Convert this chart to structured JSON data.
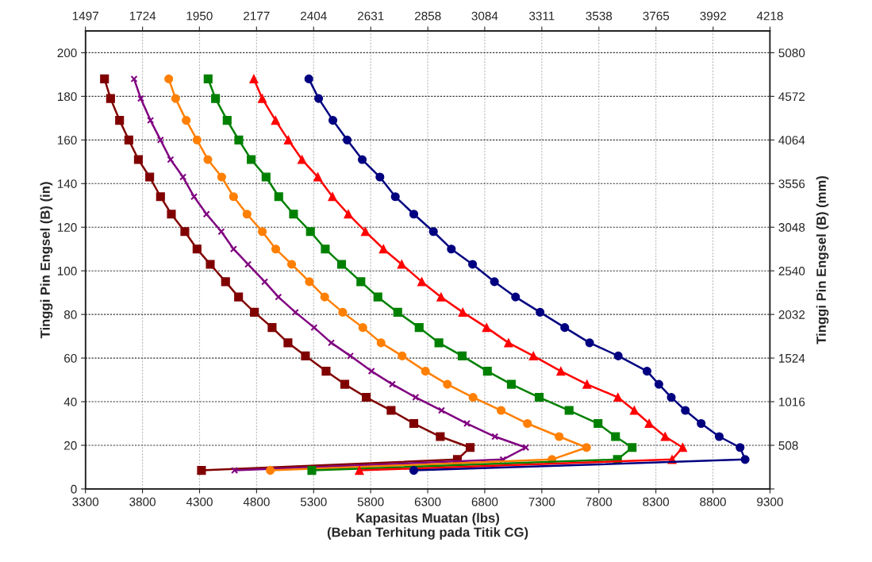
{
  "chart_data": {
    "type": "line",
    "xlabel": "Kapasitas Muatan (lbs)\n(Beban Terhitung pada Titik CG)",
    "ylabel": "Tinggi Pin Engsel (B) (in)",
    "y2label": "Tinggi Pin Engsel (B) (mm)",
    "xlim": [
      3300,
      9300
    ],
    "xticks": [
      3300,
      3800,
      4300,
      4800,
      5300,
      5800,
      6300,
      6800,
      7300,
      7800,
      8300,
      8800,
      9300
    ],
    "x2lim": [
      1497,
      4218
    ],
    "x2ticks": [
      1497,
      1724,
      1950,
      2177,
      2404,
      2631,
      2858,
      3084,
      3311,
      3538,
      3765,
      3992,
      4218
    ],
    "ylim": [
      0,
      210
    ],
    "yticks": [
      0,
      20,
      40,
      60,
      80,
      100,
      120,
      140,
      160,
      180,
      200
    ],
    "y2lim": [
      0,
      5334
    ],
    "y2ticks": [
      {
        "value": 0,
        "label": null
      },
      508,
      1016,
      1524,
      2032,
      2540,
      3048,
      3556,
      4064,
      4572,
      5080
    ],
    "grid": true,
    "line_style": "solid",
    "series": [
      {
        "color": "#800000",
        "marker": "square",
        "x": [
          3467,
          3520,
          3599,
          3680,
          3764,
          3863,
          3958,
          4053,
          4171,
          4278,
          4394,
          4528,
          4642,
          4781,
          4936,
          5075,
          5228,
          5409,
          5573,
          5761,
          5979,
          6178,
          6410,
          6672,
          6560,
          4317
        ],
        "values": [
          188,
          179,
          169,
          160,
          151,
          143,
          134,
          126,
          118,
          110,
          103,
          95,
          88,
          81,
          74,
          67,
          61,
          54,
          48,
          42,
          36,
          30,
          24,
          19,
          13.5,
          8.5
        ]
      },
      {
        "color": "#800080",
        "marker": "cross",
        "x": [
          3726,
          3785,
          3870,
          3958,
          4046,
          4155,
          4252,
          4361,
          4491,
          4598,
          4725,
          4871,
          4991,
          5140,
          5304,
          5455,
          5622,
          5807,
          5990,
          6194,
          6421,
          6644,
          6889,
          7160,
          6960,
          4607
        ],
        "values": [
          188,
          179,
          169,
          160,
          151,
          143,
          134,
          126,
          118,
          110,
          103,
          95,
          88,
          81,
          74,
          67,
          61,
          54,
          48,
          42,
          36,
          30,
          24,
          19,
          13.5,
          8.5
        ]
      },
      {
        "color": "#ff7f00",
        "marker": "circle",
        "x": [
          4030,
          4090,
          4183,
          4278,
          4373,
          4494,
          4598,
          4716,
          4850,
          4968,
          5107,
          5263,
          5397,
          5555,
          5731,
          5891,
          6076,
          6280,
          6472,
          6697,
          6943,
          7174,
          7452,
          7692,
          7389,
          4920
        ],
        "values": [
          188,
          179,
          169,
          160,
          151,
          143,
          134,
          126,
          118,
          110,
          103,
          95,
          88,
          81,
          74,
          67,
          61,
          54,
          48,
          42,
          36,
          30,
          24,
          19,
          13.5,
          8.5
        ]
      },
      {
        "color": "#008000",
        "marker": "square",
        "x": [
          4375,
          4440,
          4542,
          4644,
          4753,
          4883,
          4994,
          5124,
          5272,
          5402,
          5545,
          5714,
          5863,
          6037,
          6225,
          6398,
          6602,
          6823,
          7033,
          7277,
          7539,
          7793,
          7946,
          8092,
          7963,
          5284
        ],
        "values": [
          188,
          179,
          169,
          160,
          151,
          143,
          134,
          126,
          118,
          110,
          103,
          95,
          88,
          81,
          74,
          67,
          61,
          54,
          48,
          42,
          36,
          30,
          24,
          19,
          13.5,
          8.5
        ]
      },
      {
        "color": "#ff0000",
        "marker": "triangle",
        "x": [
          4776,
          4850,
          4966,
          5078,
          5198,
          5337,
          5465,
          5604,
          5754,
          5912,
          6072,
          6248,
          6417,
          6607,
          6816,
          7008,
          7226,
          7467,
          7696,
          7967,
          8111,
          8241,
          8381,
          8535,
          8442,
          5701
        ],
        "values": [
          188,
          179,
          169,
          160,
          151,
          143,
          134,
          126,
          118,
          110,
          103,
          95,
          88,
          81,
          74,
          67,
          61,
          54,
          48,
          42,
          36,
          30,
          24,
          19,
          13.5,
          8.5
        ]
      },
      {
        "color": "#000080",
        "marker": "circle",
        "x": [
          5258,
          5344,
          5469,
          5594,
          5726,
          5881,
          6016,
          6178,
          6350,
          6507,
          6693,
          6885,
          7070,
          7285,
          7501,
          7719,
          7970,
          8222,
          8326,
          8435,
          8558,
          8697,
          8855,
          9038,
          9082,
          6178
        ],
        "values": [
          188,
          179,
          169,
          160,
          151,
          143,
          134,
          126,
          118,
          110,
          103,
          95,
          88,
          81,
          74,
          67,
          61,
          54,
          48,
          42,
          36,
          30,
          24,
          19,
          13.5,
          8.5
        ]
      }
    ]
  }
}
